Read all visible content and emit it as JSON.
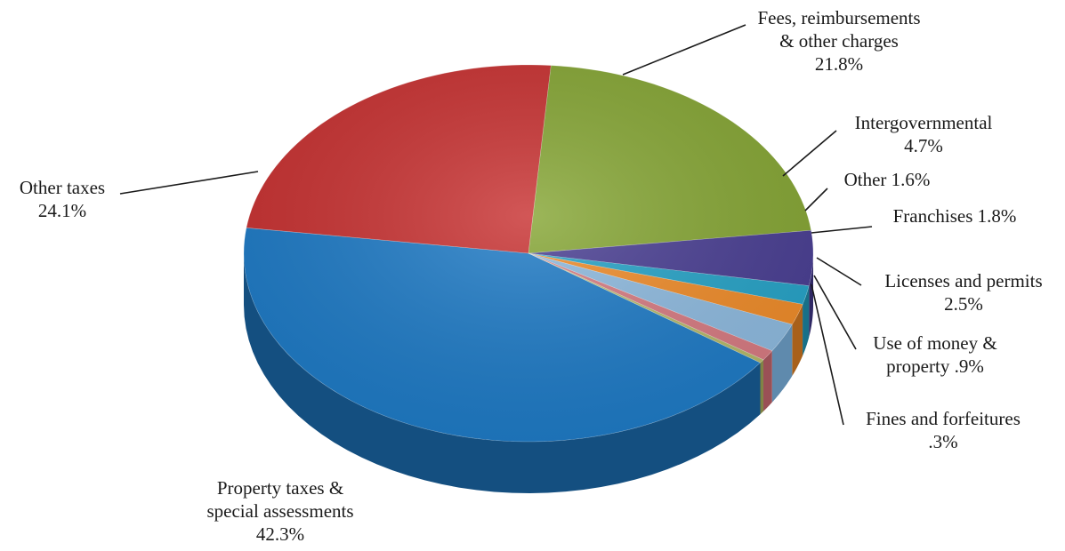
{
  "chart_data": {
    "type": "pie",
    "title": "",
    "style": "3d-exploded-none",
    "slices": [
      {
        "lines": [
          "Property taxes &",
          "special assessments",
          "42.3%"
        ],
        "value": 42.3,
        "color": "#1f7bc6",
        "side": "#144f80"
      },
      {
        "lines": [
          "Other taxes",
          "24.1%"
        ],
        "value": 24.1,
        "color": "#c83232",
        "side": "#8a1f1f"
      },
      {
        "lines": [
          "Fees, reimbursements",
          "& other charges",
          "21.8%"
        ],
        "value": 21.8,
        "color": "#86a635",
        "side": "#5a7222"
      },
      {
        "lines": [
          "Intergovernmental",
          "4.7%"
        ],
        "value": 4.7,
        "color": "#4a3f93",
        "side": "#2f2864"
      },
      {
        "lines": [
          "Other  1.6%"
        ],
        "value": 1.6,
        "color": "#27a3c7",
        "side": "#187088"
      },
      {
        "lines": [
          "Franchises 1.8%"
        ],
        "value": 1.8,
        "color": "#ef8c2a",
        "side": "#a8601a"
      },
      {
        "lines": [
          "Licenses and permits",
          "2.5%"
        ],
        "value": 2.5,
        "color": "#8ebadf",
        "side": "#5f8aad"
      },
      {
        "lines": [
          "Use of money &",
          "property .9%"
        ],
        "value": 0.9,
        "color": "#d77b82",
        "side": "#9a5056"
      },
      {
        "lines": [
          "Fines and forfeitures",
          ".3%"
        ],
        "value": 0.3,
        "color": "#b5b96a",
        "side": "#7f8244"
      }
    ],
    "order": "counterclockwise-from-east",
    "legend": "none",
    "data_labels": "outside-with-leader-lines"
  }
}
